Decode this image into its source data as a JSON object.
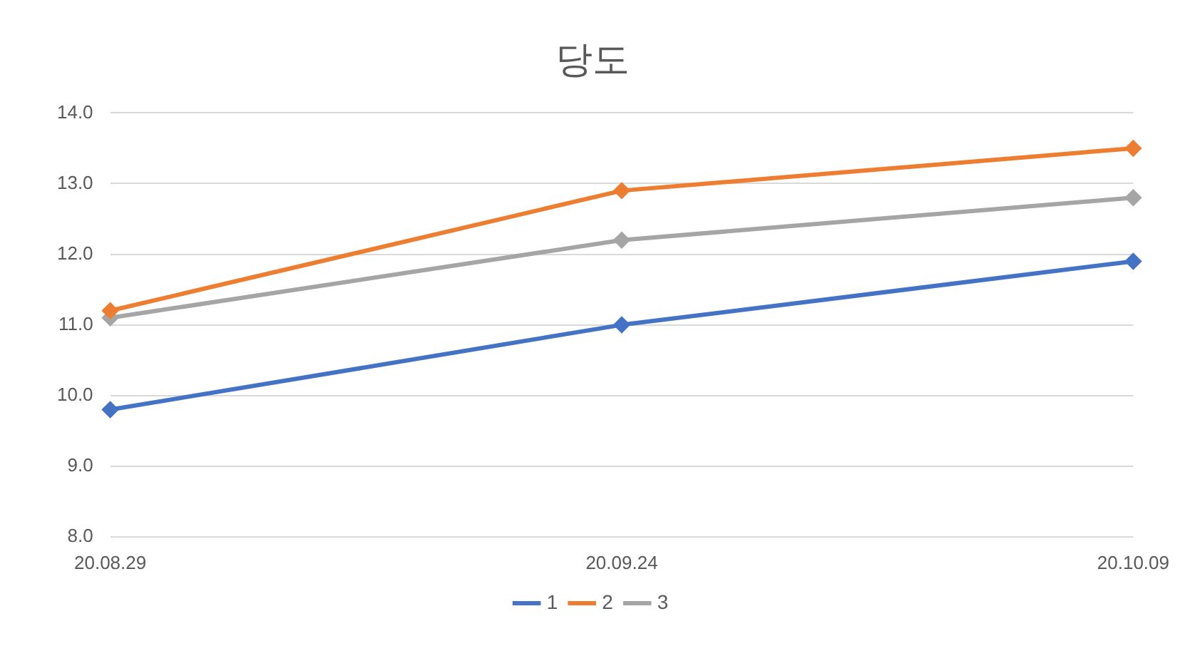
{
  "chart_data": {
    "type": "line",
    "title": "당도",
    "categories": [
      "20.08.29",
      "20.09.24",
      "20.10.09"
    ],
    "series": [
      {
        "name": "1",
        "color": "#4472c4",
        "values": [
          9.8,
          11.0,
          11.9
        ]
      },
      {
        "name": "2",
        "color": "#ed7d31",
        "values": [
          11.2,
          12.9,
          13.5
        ]
      },
      {
        "name": "3",
        "color": "#a5a5a5",
        "values": [
          11.1,
          12.2,
          12.8
        ]
      }
    ],
    "ylim": [
      8,
      14
    ],
    "yticks": [
      {
        "value": 8,
        "label": "8.0"
      },
      {
        "value": 9,
        "label": "9.0"
      },
      {
        "value": 10,
        "label": "10.0"
      },
      {
        "value": 11,
        "label": "11.0"
      },
      {
        "value": 12,
        "label": "12.0"
      },
      {
        "value": 13,
        "label": "13.0"
      },
      {
        "value": 14,
        "label": "14.0"
      }
    ],
    "grid": "y",
    "legend": "bottom",
    "marker": "diamond",
    "line_style": "solid"
  }
}
